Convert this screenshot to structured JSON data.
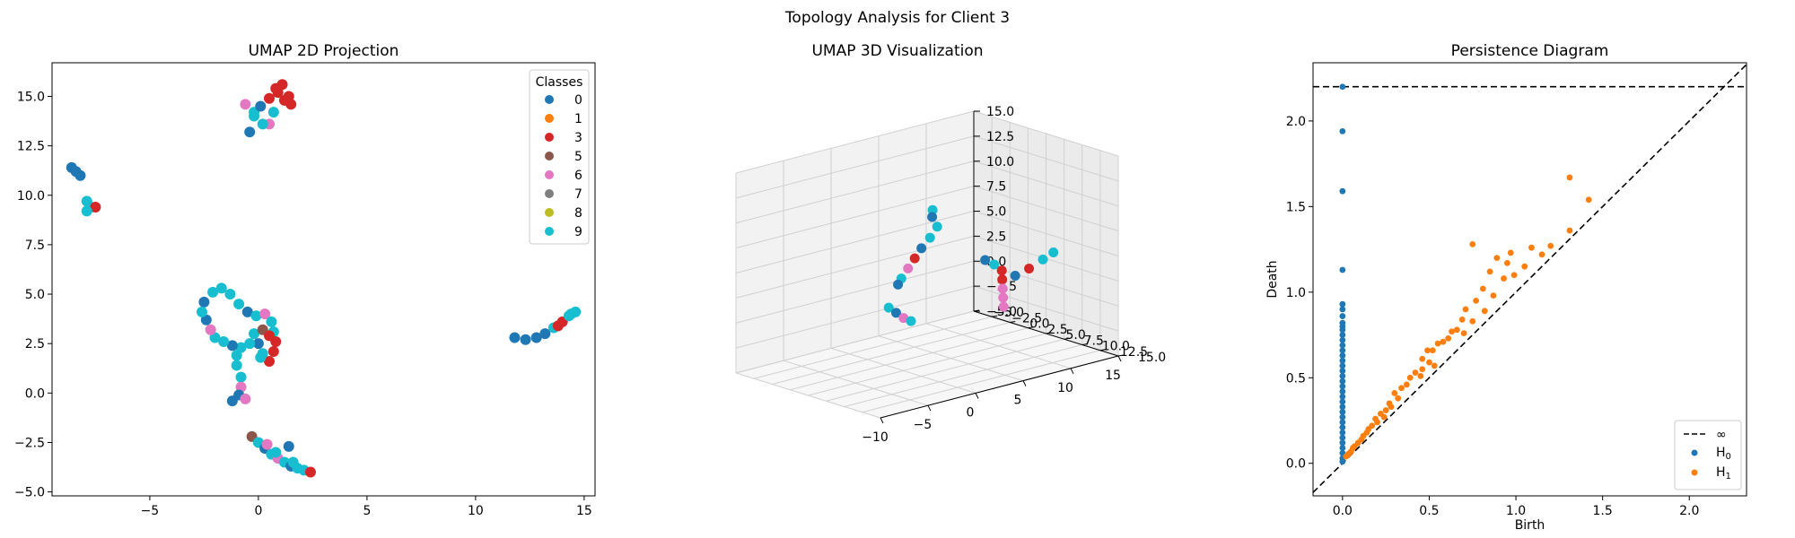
{
  "figure": {
    "suptitle": "Topology Analysis for Client 3"
  },
  "chart_data": [
    {
      "type": "scatter",
      "title": "UMAP 2D Projection",
      "xlabel": "",
      "ylabel": "",
      "xlim": [
        -9.5,
        15.5
      ],
      "ylim": [
        -5.2,
        16.7
      ],
      "xticks": [
        -5,
        0,
        5,
        10,
        15
      ],
      "yticks": [
        -5.0,
        -2.5,
        0.0,
        2.5,
        5.0,
        7.5,
        10.0,
        12.5,
        15.0
      ],
      "legend": {
        "title": "Classes",
        "position": "top-right",
        "entries": [
          "0",
          "1",
          "3",
          "5",
          "6",
          "7",
          "8",
          "9"
        ]
      },
      "class_colors": {
        "0": "#1f77b4",
        "1": "#ff7f0e",
        "3": "#d62728",
        "5": "#8c564b",
        "6": "#e377c2",
        "7": "#7f7f7f",
        "8": "#bcbd22",
        "9": "#17becf"
      },
      "clusters": [
        {
          "points": [
            [
              -8.6,
              11.4
            ],
            [
              -8.4,
              11.2
            ],
            [
              -8.2,
              11.0
            ]
          ],
          "classes": [
            "0",
            "0",
            "0"
          ]
        },
        {
          "points": [
            [
              -7.9,
              9.7
            ],
            [
              -7.7,
              9.4
            ],
            [
              -7.5,
              9.4
            ],
            [
              -7.9,
              9.2
            ]
          ],
          "classes": [
            "9",
            "9",
            "3",
            "9"
          ]
        },
        {
          "points": [
            [
              -0.6,
              14.6
            ],
            [
              -0.2,
              14.2
            ],
            [
              0.1,
              14.5
            ],
            [
              0.5,
              14.9
            ],
            [
              0.9,
              15.2
            ],
            [
              1.1,
              15.6
            ],
            [
              1.4,
              15.0
            ],
            [
              1.5,
              14.6
            ],
            [
              0.7,
              14.2
            ],
            [
              0.5,
              13.6
            ],
            [
              0.2,
              13.6
            ],
            [
              -0.4,
              13.2
            ],
            [
              -0.2,
              14.0
            ],
            [
              0.8,
              15.4
            ],
            [
              1.2,
              14.8
            ]
          ],
          "classes": [
            "6",
            "9",
            "0",
            "3",
            "3",
            "3",
            "3",
            "3",
            "9",
            "6",
            "9",
            "0",
            "9",
            "3",
            "3"
          ]
        },
        {
          "points": [
            [
              -2.5,
              4.6
            ],
            [
              -2.1,
              5.1
            ],
            [
              -1.7,
              5.3
            ],
            [
              -1.3,
              5.0
            ],
            [
              -0.9,
              4.5
            ],
            [
              -0.5,
              4.1
            ],
            [
              -0.1,
              3.9
            ],
            [
              0.3,
              4.0
            ],
            [
              0.6,
              3.6
            ],
            [
              0.7,
              3.1
            ],
            [
              0.8,
              2.6
            ],
            [
              0.7,
              2.1
            ],
            [
              0.5,
              1.6
            ],
            [
              0.2,
              2.0
            ],
            [
              0.0,
              2.5
            ],
            [
              -0.2,
              3.0
            ],
            [
              0.2,
              3.2
            ],
            [
              -0.4,
              2.5
            ],
            [
              -0.8,
              2.3
            ],
            [
              -1.2,
              2.4
            ],
            [
              -1.6,
              2.6
            ],
            [
              -2.0,
              2.8
            ],
            [
              -2.2,
              3.2
            ],
            [
              -2.4,
              3.7
            ],
            [
              -1.0,
              1.9
            ],
            [
              -1.0,
              1.4
            ],
            [
              -0.8,
              0.8
            ],
            [
              -0.8,
              0.3
            ],
            [
              -0.9,
              -0.1
            ],
            [
              -1.2,
              -0.4
            ],
            [
              -0.6,
              -0.3
            ],
            [
              0.1,
              1.8
            ],
            [
              -2.6,
              4.1
            ],
            [
              0.5,
              2.9
            ]
          ],
          "classes": [
            "0",
            "9",
            "9",
            "9",
            "9",
            "0",
            "9",
            "6",
            "9",
            "9",
            "3",
            "3",
            "3",
            "9",
            "0",
            "9",
            "5",
            "9",
            "9",
            "0",
            "9",
            "9",
            "6",
            "0",
            "9",
            "9",
            "9",
            "6",
            "0",
            "0",
            "6",
            "9",
            "9",
            "3"
          ]
        },
        {
          "points": [
            [
              -0.3,
              -2.2
            ],
            [
              0.0,
              -2.5
            ],
            [
              0.3,
              -2.8
            ],
            [
              0.6,
              -3.1
            ],
            [
              0.9,
              -3.3
            ],
            [
              1.2,
              -3.5
            ],
            [
              1.5,
              -3.7
            ],
            [
              1.8,
              -3.8
            ],
            [
              2.1,
              -3.9
            ],
            [
              2.4,
              -4.0
            ],
            [
              1.4,
              -2.7
            ],
            [
              0.8,
              -3.0
            ],
            [
              1.6,
              -3.5
            ],
            [
              0.4,
              -2.6
            ]
          ],
          "classes": [
            "5",
            "9",
            "0",
            "9",
            "6",
            "9",
            "0",
            "9",
            "9",
            "3",
            "0",
            "9",
            "9",
            "6"
          ]
        },
        {
          "points": [
            [
              11.8,
              2.8
            ],
            [
              12.3,
              2.7
            ],
            [
              12.8,
              2.8
            ],
            [
              13.2,
              3.0
            ],
            [
              13.6,
              3.3
            ],
            [
              14.0,
              3.6
            ],
            [
              14.3,
              3.9
            ],
            [
              14.6,
              4.1
            ],
            [
              14.4,
              4.0
            ],
            [
              13.8,
              3.4
            ]
          ],
          "classes": [
            "0",
            "0",
            "0",
            "0",
            "9",
            "3",
            "9",
            "9",
            "9",
            "3"
          ]
        }
      ]
    },
    {
      "type": "scatter",
      "title": "UMAP 3D Visualization",
      "xlim": [
        -10,
        15
      ],
      "ylim": [
        -5.0,
        15.0
      ],
      "zlim": [
        -5.0,
        15.0
      ],
      "xticks": [
        -10,
        -5,
        0,
        5,
        10,
        15
      ],
      "yticks": [
        -5.0,
        -2.5,
        0.0,
        2.5,
        5.0,
        7.5,
        10.0,
        12.5,
        15.0
      ],
      "zticks": [
        -5.0,
        -2.5,
        0.0,
        2.5,
        5.0,
        7.5,
        10.0,
        12.5,
        15.0
      ],
      "clusters": [
        {
          "points": [
            [
              -3.0,
              13.0,
              13.6
            ],
            [
              -3.2,
              13.2,
              13.0
            ]
          ],
          "classes": [
            "9",
            "0"
          ]
        },
        {
          "points": [
            [
              -1.0,
              11.0,
              11.0
            ],
            [
              -1.6,
              10.8,
              10.0
            ],
            [
              -2.2,
              10.4,
              9.0
            ],
            [
              -2.6,
              10.0,
              8.0
            ],
            [
              -3.0,
              9.6,
              7.0
            ],
            [
              -3.4,
              9.2,
              6.0
            ],
            [
              -3.6,
              9.0,
              5.4
            ]
          ],
          "classes": [
            "9",
            "9",
            "0",
            "3",
            "6",
            "9",
            "0"
          ]
        },
        {
          "points": [
            [
              4.8,
              10.0,
              6.0
            ],
            [
              5.6,
              10.2,
              5.4
            ],
            [
              6.4,
              10.2,
              4.6
            ],
            [
              6.6,
              10.0,
              3.6
            ],
            [
              6.8,
              9.8,
              2.6
            ],
            [
              7.0,
              9.6,
              1.6
            ],
            [
              7.2,
              9.4,
              0.6
            ]
          ],
          "classes": [
            "0",
            "9",
            "3",
            "3",
            "6",
            "6",
            "6"
          ]
        },
        {
          "points": [
            [
              3.4,
              -1.5,
              -1.0
            ],
            [
              3.8,
              -1.0,
              -1.5
            ],
            [
              4.2,
              -0.5,
              -2.0
            ],
            [
              4.6,
              0.0,
              -2.3
            ]
          ],
          "classes": [
            "9",
            "0",
            "6",
            "9"
          ]
        },
        {
          "points": [
            [
              11.0,
              6.0,
              2.0
            ],
            [
              12.0,
              6.6,
              2.6
            ],
            [
              13.0,
              7.2,
              3.4
            ],
            [
              13.8,
              7.6,
              4.0
            ]
          ],
          "classes": [
            "0",
            "3",
            "9",
            "9"
          ]
        }
      ]
    },
    {
      "type": "scatter",
      "title": "Persistence Diagram",
      "xlabel": "Birth",
      "ylabel": "Death",
      "xlim": [
        -0.17,
        2.33
      ],
      "ylim": [
        -0.19,
        2.34
      ],
      "xticks": [
        0.0,
        0.5,
        1.0,
        1.5,
        2.0
      ],
      "yticks": [
        0.0,
        0.5,
        1.0,
        1.5,
        2.0
      ],
      "infinity_level": 2.2,
      "legend": {
        "position": "bottom-right",
        "entries": [
          "∞",
          "H0",
          "H1"
        ]
      },
      "series": [
        {
          "name": "H0",
          "color": "#1f77b4",
          "points": [
            [
              0,
              2.2
            ],
            [
              0,
              1.94
            ],
            [
              0,
              1.59
            ],
            [
              0,
              1.13
            ],
            [
              0,
              0.93
            ],
            [
              0,
              0.9
            ],
            [
              0,
              0.86
            ],
            [
              0,
              0.82
            ],
            [
              0,
              0.8
            ],
            [
              0,
              0.78
            ],
            [
              0,
              0.75
            ],
            [
              0,
              0.72
            ],
            [
              0,
              0.69
            ],
            [
              0,
              0.66
            ],
            [
              0,
              0.63
            ],
            [
              0,
              0.6
            ],
            [
              0,
              0.57
            ],
            [
              0,
              0.54
            ],
            [
              0,
              0.51
            ],
            [
              0,
              0.48
            ],
            [
              0,
              0.45
            ],
            [
              0,
              0.42
            ],
            [
              0,
              0.39
            ],
            [
              0,
              0.36
            ],
            [
              0,
              0.33
            ],
            [
              0,
              0.3
            ],
            [
              0,
              0.27
            ],
            [
              0,
              0.24
            ],
            [
              0,
              0.21
            ],
            [
              0,
              0.18
            ],
            [
              0,
              0.15
            ],
            [
              0,
              0.12
            ],
            [
              0,
              0.09
            ],
            [
              0,
              0.06
            ],
            [
              0,
              0.03
            ],
            [
              0,
              0.01
            ]
          ]
        },
        {
          "name": "H1",
          "color": "#ff7f0e",
          "points": [
            [
              1.31,
              1.67
            ],
            [
              1.42,
              1.54
            ],
            [
              1.31,
              1.36
            ],
            [
              1.2,
              1.27
            ],
            [
              1.15,
              1.22
            ],
            [
              1.09,
              1.26
            ],
            [
              0.97,
              1.23
            ],
            [
              1.05,
              1.15
            ],
            [
              0.75,
              1.28
            ],
            [
              0.89,
              1.2
            ],
            [
              0.95,
              1.17
            ],
            [
              0.85,
              1.12
            ],
            [
              0.99,
              1.1
            ],
            [
              0.93,
              1.08
            ],
            [
              0.81,
              1.02
            ],
            [
              0.87,
              0.98
            ],
            [
              0.77,
              0.95
            ],
            [
              0.71,
              0.9
            ],
            [
              0.69,
              0.84
            ],
            [
              0.82,
              0.89
            ],
            [
              0.66,
              0.78
            ],
            [
              0.75,
              0.83
            ],
            [
              0.63,
              0.77
            ],
            [
              0.7,
              0.76
            ],
            [
              0.52,
              0.66
            ],
            [
              0.55,
              0.7
            ],
            [
              0.58,
              0.71
            ],
            [
              0.61,
              0.73
            ],
            [
              0.49,
              0.66
            ],
            [
              0.5,
              0.59
            ],
            [
              0.46,
              0.61
            ],
            [
              0.46,
              0.55
            ],
            [
              0.53,
              0.57
            ],
            [
              0.42,
              0.53
            ],
            [
              0.45,
              0.51
            ],
            [
              0.39,
              0.5
            ],
            [
              0.37,
              0.46
            ],
            [
              0.34,
              0.44
            ],
            [
              0.3,
              0.41
            ],
            [
              0.32,
              0.38
            ],
            [
              0.27,
              0.35
            ],
            [
              0.28,
              0.33
            ],
            [
              0.25,
              0.31
            ],
            [
              0.22,
              0.29
            ],
            [
              0.24,
              0.27
            ],
            [
              0.19,
              0.26
            ],
            [
              0.2,
              0.24
            ],
            [
              0.17,
              0.22
            ],
            [
              0.15,
              0.2
            ],
            [
              0.14,
              0.18
            ],
            [
              0.12,
              0.16
            ],
            [
              0.11,
              0.14
            ],
            [
              0.09,
              0.12
            ],
            [
              0.07,
              0.1
            ],
            [
              0.06,
              0.09
            ],
            [
              0.05,
              0.07
            ],
            [
              0.04,
              0.06
            ],
            [
              0.03,
              0.05
            ],
            [
              0.02,
              0.04
            ]
          ]
        }
      ]
    }
  ]
}
